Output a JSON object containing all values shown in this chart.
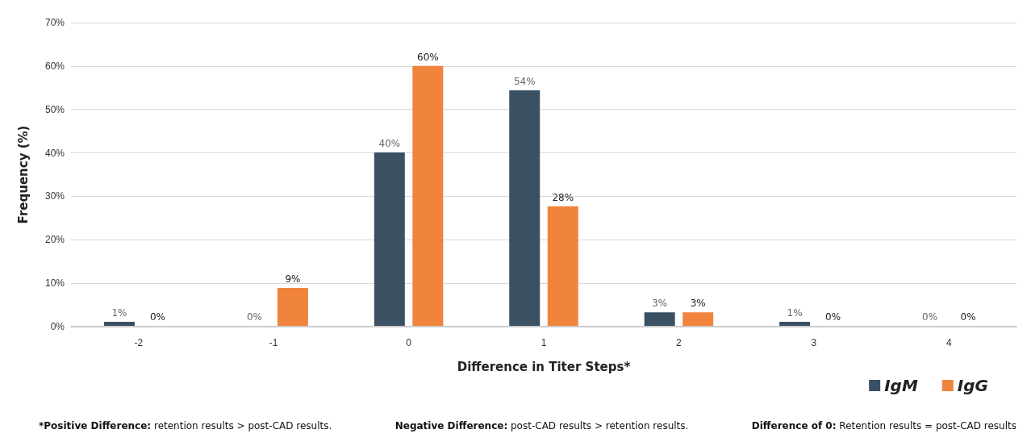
{
  "chart_data": {
    "type": "bar",
    "xlabel": "Difference in Titer Steps*",
    "ylabel": "Frequency (%)",
    "categories": [
      "-2",
      "-1",
      "0",
      "1",
      "2",
      "3",
      "4"
    ],
    "series": [
      {
        "name": "IgM",
        "color": "#3c5064",
        "values": [
          1.1,
          0,
          40.1,
          54.4,
          3.3,
          1.1,
          0
        ],
        "value_labels": [
          "1%",
          "0%",
          "40%",
          "54%",
          "3%",
          "1%",
          "0%"
        ]
      },
      {
        "name": "IgG",
        "color": "#f0843c",
        "values": [
          0,
          8.9,
          60,
          27.7,
          3.3,
          0,
          0
        ],
        "value_labels": [
          "0%",
          "9%",
          "60%",
          "28%",
          "3%",
          "0%",
          "0%"
        ]
      }
    ],
    "ylim": [
      0,
      70
    ],
    "yticks": [
      {
        "value": 0,
        "label": "0%"
      },
      {
        "value": 10,
        "label": "10%"
      },
      {
        "value": 20,
        "label": "20%"
      },
      {
        "value": 30,
        "label": "30%"
      },
      {
        "value": 40,
        "label": "40%"
      },
      {
        "value": 50,
        "label": "50%"
      },
      {
        "value": 60,
        "label": "60%"
      },
      {
        "value": 70,
        "label": "70%"
      }
    ],
    "grid": "y",
    "legend": "bottom right",
    "annotations": [
      "*Positive Difference: retention results > post-CAD results.",
      "Negative Difference: post-CAD results > retention results.",
      "Difference of 0: Retention results = post-CAD results"
    ]
  }
}
